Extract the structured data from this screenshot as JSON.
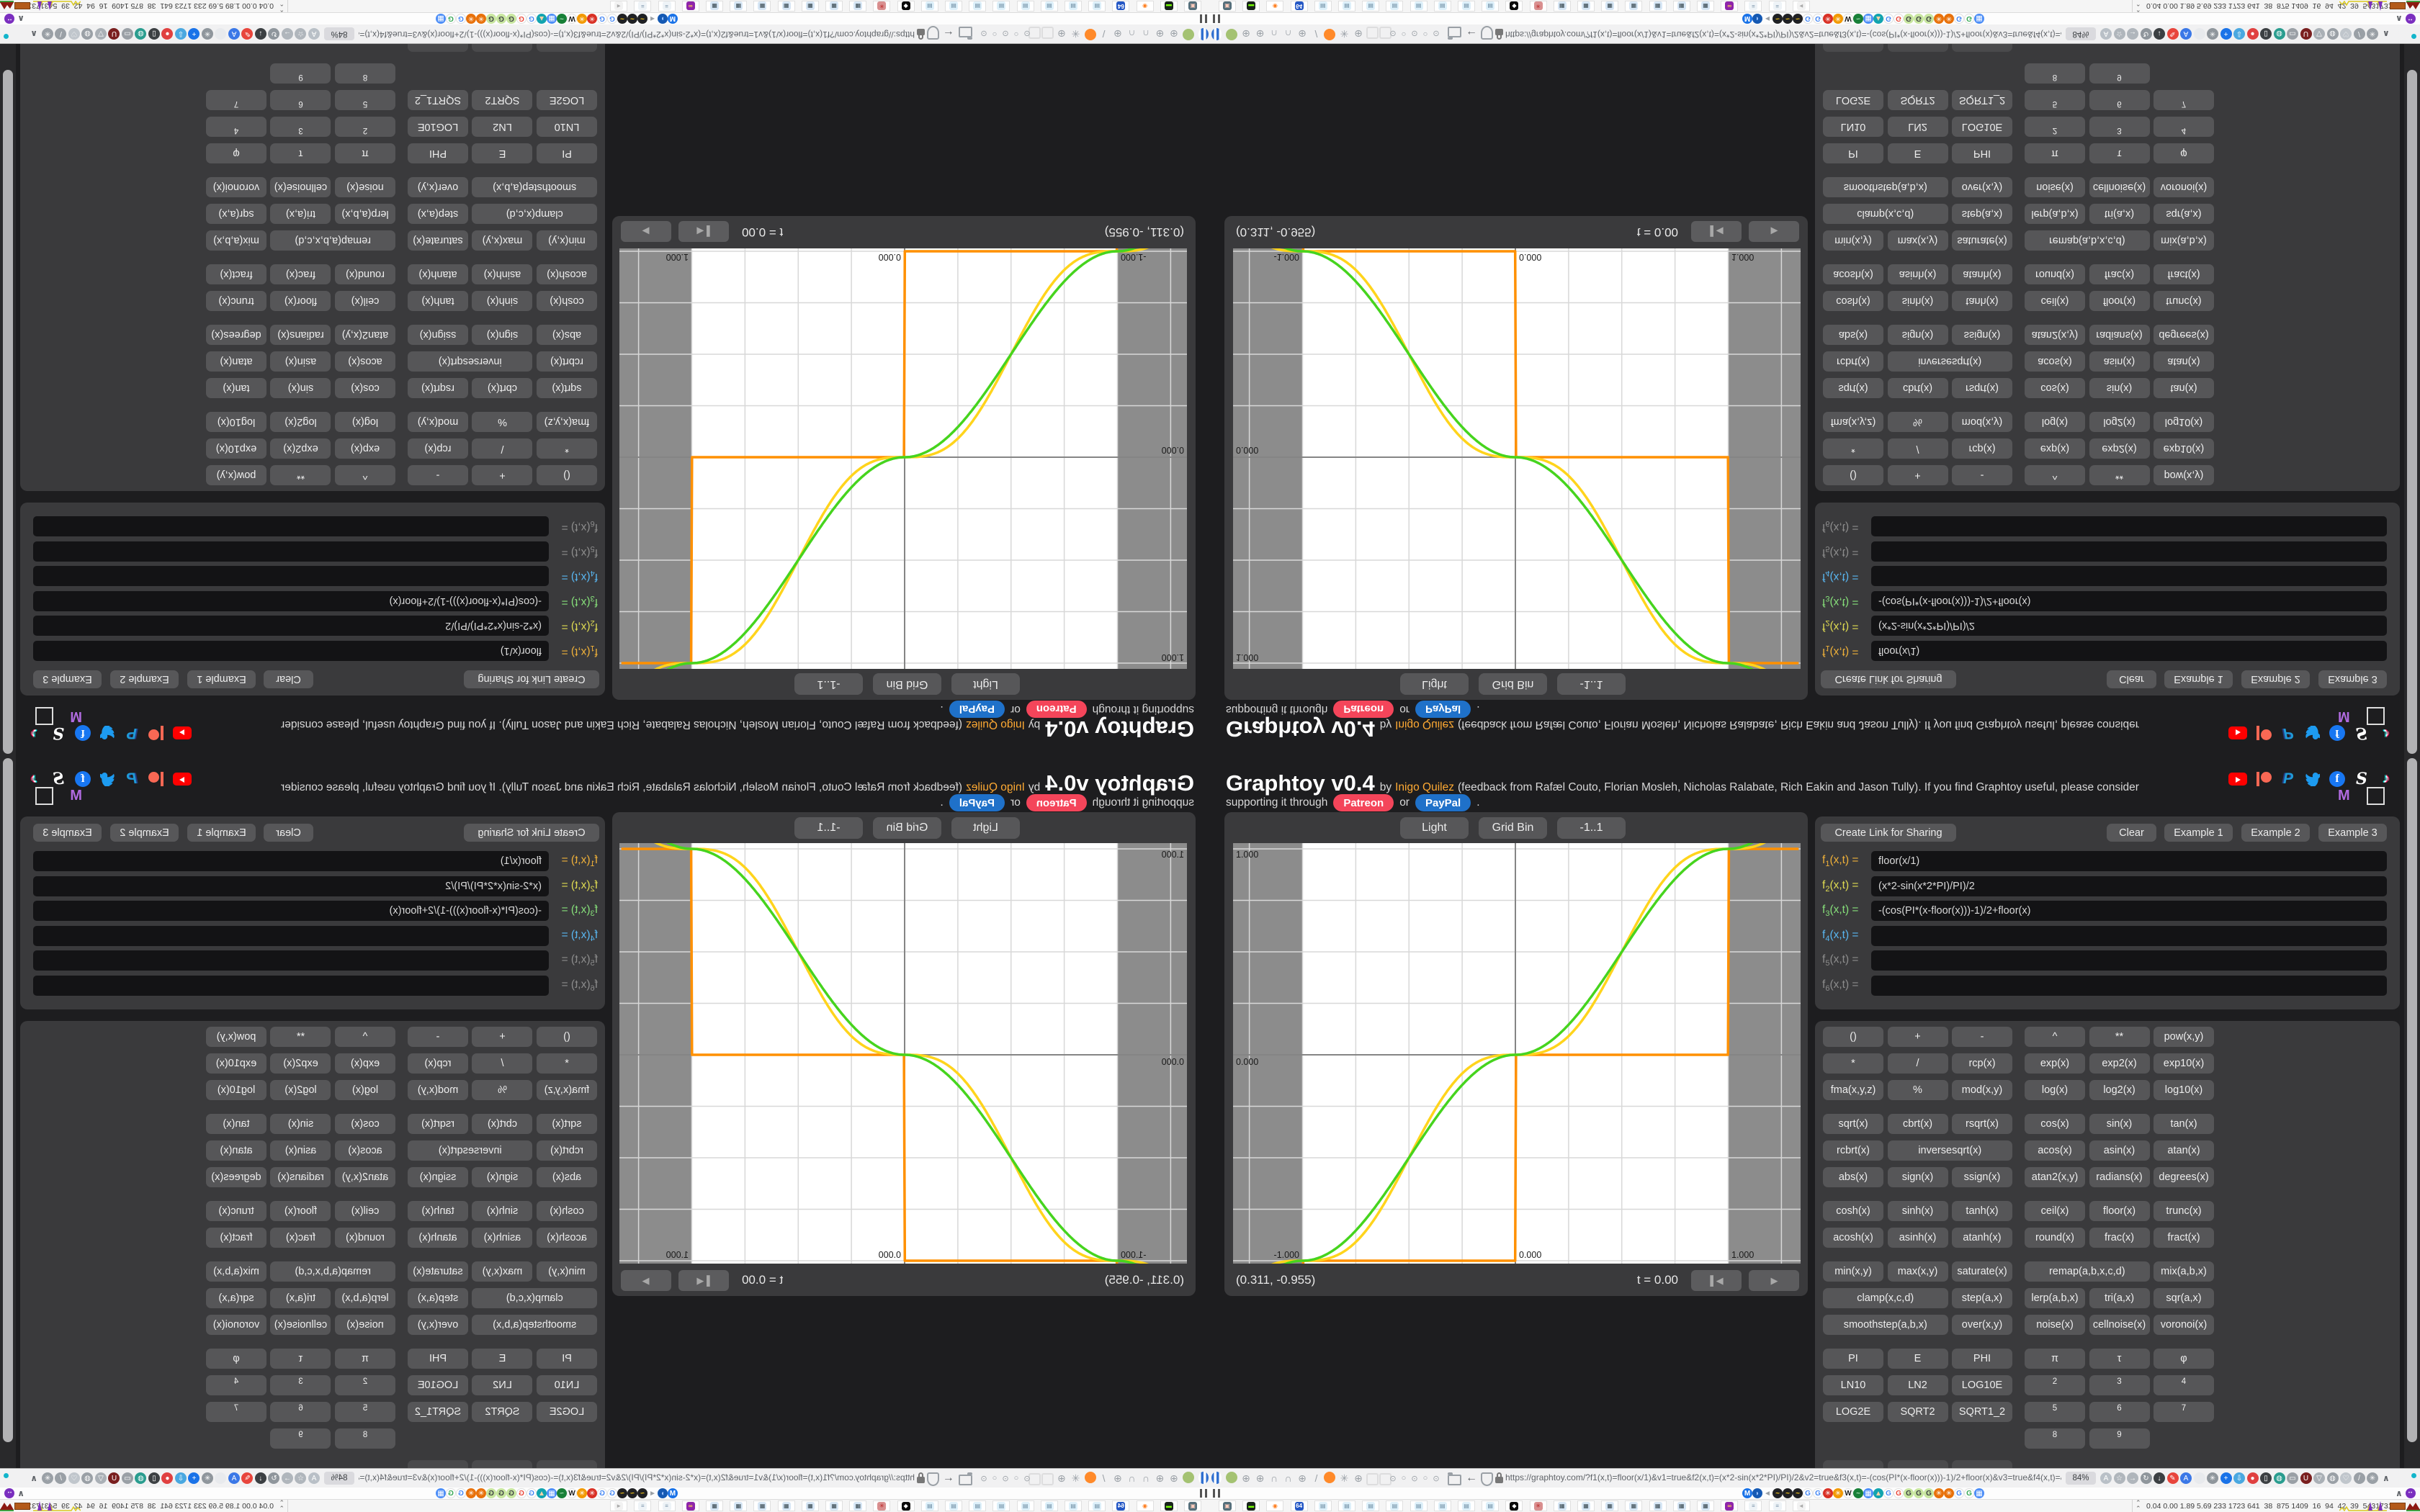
{
  "app": {
    "title": "Graphtoy v0.4",
    "by": "by",
    "author": "Inigo Quilez",
    "credits": "(feedback from Rafæl Couto, Florian Mosleh, Nicholas Ralabate, Rich Eakin and Jason Tully). If you find Graphtoy useful, please consider",
    "support_prefix": "supporting it through",
    "patreon_label": "Patreon",
    "or_label": "or",
    "paypal_label": "PayPal",
    "period": ".",
    "link_color": "#ffaa33",
    "patreon_color": "#f4455a",
    "paypal_color": "#1f71c9"
  },
  "social": {
    "row1": [
      "youtube",
      "patreon",
      "paypal",
      "twitter",
      "facebook",
      "script-s",
      "tiktok"
    ],
    "m_label": "M"
  },
  "graph": {
    "buttons": [
      "Light",
      "Grid Bin",
      "-1..1"
    ],
    "coords": "(0.311, -0.955)",
    "time": "t = 0.00",
    "transport": [
      "skip-to-start",
      "play"
    ]
  },
  "chart_data": {
    "type": "line",
    "title": "",
    "x_range": [
      -1.333,
      1.333
    ],
    "y_range": [
      -1.021,
      1.021
    ],
    "grid_step": 0.25,
    "grid": true,
    "theme": "light",
    "out_of_range_band": {
      "x_min": -1,
      "x_max": 1,
      "color": "#8c8c8c"
    },
    "axis_labels": {
      "y": [
        "1.000",
        "0.000"
      ],
      "x": [
        "-1.000",
        "0.000",
        "1.000"
      ]
    },
    "series": [
      {
        "name": "f1",
        "expr": "floor(x/1)",
        "color": "#ff9000"
      },
      {
        "name": "f2",
        "expr": "(x*2-sin(x*2*PI)/PI)/2",
        "color": "#ffd41c"
      },
      {
        "name": "f3",
        "expr": "-(cos(PI*(x-floor(x)))-1)/2+floor(x)",
        "color": "#46d41e"
      }
    ]
  },
  "formulas": {
    "buttons": {
      "create_link": "Create Link for Sharing",
      "clear": "Clear",
      "examples": [
        "Example 1",
        "Example 2",
        "Example 3"
      ]
    },
    "rows": [
      {
        "sub": "1",
        "args": "(x,t) =",
        "value": "floor(x/1)",
        "color": "#f0b13a"
      },
      {
        "sub": "2",
        "args": "(x,t) =",
        "value": "(x*2-sin(x*2*PI)/PI)/2",
        "color": "#e0dc52"
      },
      {
        "sub": "3",
        "args": "(x,t) =",
        "value": "-(cos(PI*(x-floor(x)))-1)/2+floor(x)",
        "color": "#86df7a"
      },
      {
        "sub": "4",
        "args": "(x,t) =",
        "value": "",
        "color": "#59b7f2"
      },
      {
        "sub": "5",
        "args": "(x,t) =",
        "value": "",
        "color": "#8d8d8d"
      },
      {
        "sub": "6",
        "args": "(x,t) =",
        "value": "",
        "color": "#8d8d8d"
      }
    ]
  },
  "grid": {
    "groups": [
      [
        [
          "()",
          "+",
          "-",
          "^",
          "**",
          "pow(x,y)"
        ],
        [
          "*",
          "/",
          "rcp(x)",
          "exp(x)",
          "exp2(x)",
          "exp10(x)"
        ],
        [
          "fma(x,y,z)",
          "%",
          "mod(x,y)",
          "log(x)",
          "log2(x)",
          "log10(x)"
        ]
      ],
      [
        [
          "sqrt(x)",
          "cbrt(x)",
          "rsqrt(x)",
          "cos(x)",
          "sin(x)",
          "tan(x)"
        ],
        [
          "rcbrt(x)",
          {
            "l": "inversesqrt(x)",
            "span": 2
          },
          "acos(x)",
          "asin(x)",
          "atan(x)"
        ],
        [
          "abs(x)",
          "sign(x)",
          "ssign(x)",
          "atan2(x,y)",
          "radians(x)",
          "degrees(x)"
        ]
      ],
      [
        [
          "cosh(x)",
          "sinh(x)",
          "tanh(x)",
          "ceil(x)",
          "floor(x)",
          "trunc(x)"
        ],
        [
          "acosh(x)",
          "asinh(x)",
          "atanh(x)",
          "round(x)",
          "frac(x)",
          "fract(x)"
        ]
      ],
      [
        [
          "min(x,y)",
          "max(x,y)",
          "saturate(x)",
          {
            "l": "remap(a,b,x,c,d)",
            "span": 2
          },
          "mix(a,b,x)"
        ],
        [
          {
            "l": "clamp(x,c,d)",
            "span": 2
          },
          "step(a,x)",
          "lerp(a,b,x)",
          "tri(a,x)",
          "sqr(a,x)"
        ],
        [
          {
            "l": "smoothstep(a,b,x)",
            "span": 2
          },
          "over(x,y)",
          "noise(x)",
          "cellnoise(x)",
          "voronoi(x)"
        ]
      ],
      [
        [
          "PI",
          "E",
          "PHI",
          "π",
          "τ",
          "φ"
        ],
        [
          "LN10",
          "LN2",
          "LOG10E",
          {
            "l": "2",
            "sup": true
          },
          {
            "l": "3",
            "sup": true
          },
          {
            "l": "4",
            "sup": true
          }
        ],
        [
          "LOG2E",
          "SQRT2",
          "SQRT1_2",
          {
            "l": "5",
            "sup": true
          },
          {
            "l": "6",
            "sup": true
          },
          {
            "l": "7",
            "sup": true
          }
        ],
        [
          {
            "skip": true
          },
          {
            "skip": true
          },
          {
            "skip": true
          },
          {
            "l": "8",
            "sup": true
          },
          {
            "l": "9",
            "sup": true
          },
          {
            "skip": true
          }
        ]
      ]
    ]
  },
  "browser": {
    "url": "https://graphtoy.com/?f1(x,t)=floor(x/1)&v1=true&f2(x,t)=(x*2-sin(x*2*PI)/PI)/2&v2=true&f3(x,t)=-(cos(PI*(x-floor(x)))-1)/2+floor(x)&v3=true&f4(x,t)=&v4=true&f5(x,t)=&v5=false",
    "zoom": "84%",
    "tray": "0.04 0.00 1.89 5.69 233 1723 641  38  875 1409  16  94  42  39  54317317",
    "left_icons": [
      {
        "k": "balloon",
        "name": "balloon-icon"
      },
      {
        "k": "dot",
        "c": "#a4c272",
        "name": "profile-dot-icon"
      },
      {
        "k": "g",
        "g": "⊕",
        "name": "globe-icon"
      },
      {
        "k": "g",
        "g": "⊕",
        "name": "globe-icon"
      },
      {
        "k": "g",
        "g": "∩",
        "name": "gauge-icon"
      },
      {
        "k": "g",
        "g": "∩",
        "name": "gauge-icon"
      },
      {
        "k": "g",
        "g": "⊕",
        "name": "globe-icon"
      },
      {
        "k": "g",
        "g": "/",
        "name": "wrench-icon"
      },
      {
        "k": "dot",
        "c": "#ff8a2a",
        "name": "firefox-icon"
      },
      {
        "k": "g",
        "g": "✳",
        "name": "gear-icon"
      },
      {
        "k": "g",
        "g": "⊕",
        "name": "globe-icon"
      },
      {
        "k": "ghost",
        "name": "disabled-extension-icon"
      },
      {
        "k": "ghost",
        "name": "disabled-extension-icon"
      }
    ],
    "toggles": [
      "⊙",
      "○",
      "⊙",
      "○",
      "⊙"
    ],
    "right_icons": [
      {
        "g": "A",
        "c": "#b9c0c7",
        "name": "translate-icon"
      },
      {
        "g": "☆",
        "c": "#b0b6bc",
        "name": "bookmark-star-icon"
      },
      {
        "g": "→",
        "c": "#b0b6bc",
        "name": "forward-icon"
      },
      {
        "g": "↻",
        "c": "#8f969c",
        "name": "reload-icon"
      },
      {
        "g": "↓",
        "c": "#3c4043",
        "name": "download-icon"
      },
      {
        "g": "✎",
        "c": "#e8453c",
        "name": "highlighter-icon"
      },
      {
        "g": "A",
        "c": "#3b78e7",
        "name": "translate-ext-icon"
      },
      {
        "g": "",
        "c": "#e8eaed",
        "name": "mouse-icon"
      },
      {
        "g": "✳",
        "c": "#8f969c",
        "name": "settings-gear-icon"
      },
      {
        "g": "+",
        "c": "#1a73e8",
        "name": "add-icon"
      },
      {
        "g": "⇩",
        "c": "#4aa8e0",
        "name": "save-shield-icon"
      },
      {
        "g": "●",
        "c": "#e04040",
        "name": "recorder-icon"
      },
      {
        "g": "▯",
        "c": "#3c4043",
        "name": "trash-icon"
      },
      {
        "g": "◍",
        "c": "#2a9d8f",
        "name": "share-globe-icon"
      },
      {
        "g": "▭",
        "c": "#9aa0a6",
        "name": "phone-icon"
      },
      {
        "g": "U",
        "c": "#7a1f1f",
        "name": "ublock-icon"
      },
      {
        "g": "▽",
        "c": "#aab0b6",
        "name": "shield-icon"
      },
      {
        "g": "◍",
        "c": "#9aa0a6",
        "name": "proxy-globe-icon"
      },
      {
        "g": "♡",
        "c": "#c0c6cc",
        "name": "like-icon"
      },
      {
        "g": "/",
        "c": "#9aa0a6",
        "name": "tools-icon"
      },
      {
        "g": "✳",
        "c": "#9aa0a6",
        "name": "gear-icon"
      }
    ],
    "favicons": [
      {
        "c": "#1a73e8",
        "f": "#fff",
        "g": "M"
      },
      {
        "c": "#1559b3",
        "f": "#9cc3ff",
        "g": "◗"
      },
      {
        "c": "transparent",
        "f": "#9aa0a6",
        "g": "◄"
      },
      {
        "c": "#202124",
        "f": "#f5c518",
        "g": "~"
      },
      {
        "c": "#202124",
        "f": "#f5c518",
        "g": "~"
      },
      {
        "c": "#202124",
        "f": "#f5c518",
        "g": "~"
      },
      {
        "c": "#fff",
        "f": "#4285f4",
        "g": "G",
        "b": 1
      },
      {
        "c": "#fff",
        "f": "#4285f4",
        "g": "G",
        "b": 1
      },
      {
        "c": "#d93025",
        "f": "#fff",
        "g": "✳"
      },
      {
        "c": "#f29900",
        "f": "#fff",
        "g": "✳"
      },
      {
        "c": "#fff",
        "f": "#202122",
        "g": "W",
        "b": 1
      },
      {
        "c": "#188038",
        "f": "#a8dab5",
        "g": "~"
      },
      {
        "c": "#4d8ef7",
        "f": "#fff",
        "g": "▦"
      },
      {
        "c": "#12a4af",
        "f": "#ffd2a6",
        "g": "▲"
      },
      {
        "c": "#fff",
        "f": "#4285f4",
        "g": "G",
        "b": 1
      },
      {
        "c": "#fff",
        "f": "#ea4335",
        "g": "G",
        "b": 1
      },
      {
        "c": "#c8e6a0",
        "f": "#3c4043",
        "g": "G"
      },
      {
        "c": "#c8e6a0",
        "f": "#3c4043",
        "g": "G"
      },
      {
        "c": "#c8e6a0",
        "f": "#3c4043",
        "g": "G"
      },
      {
        "c": "#e8710a",
        "f": "#fff",
        "g": "✳"
      },
      {
        "c": "#e8710a",
        "f": "#fff",
        "g": "✳"
      },
      {
        "c": "#fff",
        "f": "#4285f4",
        "g": "G",
        "b": 1
      },
      {
        "c": "#fff",
        "f": "#34a853",
        "g": "G",
        "b": 1
      },
      {
        "c": "#4d8ef7",
        "f": "#fff",
        "g": "▦"
      }
    ],
    "taskbar": [
      {
        "c": "#546e7a",
        "f": "#ffccbc",
        "g": "▣",
        "name": "monitor-app-icon"
      },
      {
        "c": "#18231a",
        "f": "#76ff03",
        "g": "▬",
        "name": "terminal-app-icon"
      },
      {
        "c": "#fff",
        "f": "#ff7c1a",
        "g": "◉",
        "name": "firefox-app-icon"
      },
      {
        "c": "#2457c5",
        "f": "#fff",
        "g": "64",
        "name": "floppy64-app-icon"
      },
      {
        "c": "#ddf0fa",
        "f": "#6a8aa0",
        "g": "▤",
        "name": "notepad-app-icon"
      },
      {
        "c": "#ddf0fa",
        "f": "#6a8aa0",
        "g": "▤",
        "name": "notepad-app-icon"
      },
      {
        "c": "#ddf0fa",
        "f": "#6a8aa0",
        "g": "▤",
        "name": "notepad-app-icon"
      },
      {
        "c": "#ddf0fa",
        "f": "#6a8aa0",
        "g": "▤",
        "name": "notepad-app-icon"
      },
      {
        "c": "#ddf0fa",
        "f": "#6a8aa0",
        "g": "▤",
        "name": "notepad-app-icon"
      },
      {
        "c": "#ddf0fa",
        "f": "#6a8aa0",
        "g": "▤",
        "name": "notepad-app-icon"
      },
      {
        "c": "#ddf0fa",
        "f": "#6a8aa0",
        "g": "▤",
        "name": "notepad-app-icon"
      },
      {
        "c": "#ddf0fa",
        "f": "#6a8aa0",
        "g": "▤",
        "name": "notepad-app-icon"
      },
      {
        "c": "#0a0a0a",
        "f": "#fff",
        "g": "◆",
        "name": "cat-app-icon"
      },
      {
        "c": "#d98f8f",
        "f": "#b71c1c",
        "g": "✳",
        "name": "red-gear-app-icon"
      },
      {
        "c": "#d6e6f5",
        "f": "#37474f",
        "g": "▦",
        "name": "calculator-app-icon"
      },
      {
        "c": "#d6e6f5",
        "f": "#37474f",
        "g": "▦",
        "name": "calculator-app-icon"
      },
      {
        "c": "#d6e6f5",
        "f": "#37474f",
        "g": "▦",
        "name": "calculator-app-icon"
      },
      {
        "c": "#d6e6f5",
        "f": "#37474f",
        "g": "▦",
        "name": "calculator-app-icon"
      },
      {
        "c": "#d6e6f5",
        "f": "#37474f",
        "g": "▦",
        "name": "calculator-app-icon"
      },
      {
        "c": "#d6e6f5",
        "f": "#37474f",
        "g": "▦",
        "name": "calculator-app-icon"
      },
      {
        "c": "#d6e6f5",
        "f": "#37474f",
        "g": "▦",
        "name": "calculator-app-icon"
      },
      {
        "c": "#8e24aa",
        "f": "#ffd54f",
        "g": "∞",
        "name": "owl-app-icon"
      },
      {
        "c": "#eef3f7",
        "f": "#7a93a8",
        "g": "≡",
        "name": "printer-app-icon"
      },
      {
        "c": "#eef3f7",
        "f": "#7a93a8",
        "g": "≡",
        "name": "printer-app-icon"
      },
      {
        "c": "#f2f2f2",
        "f": "#aaa",
        "g": "◄",
        "name": "speaker-app-icon"
      }
    ]
  }
}
